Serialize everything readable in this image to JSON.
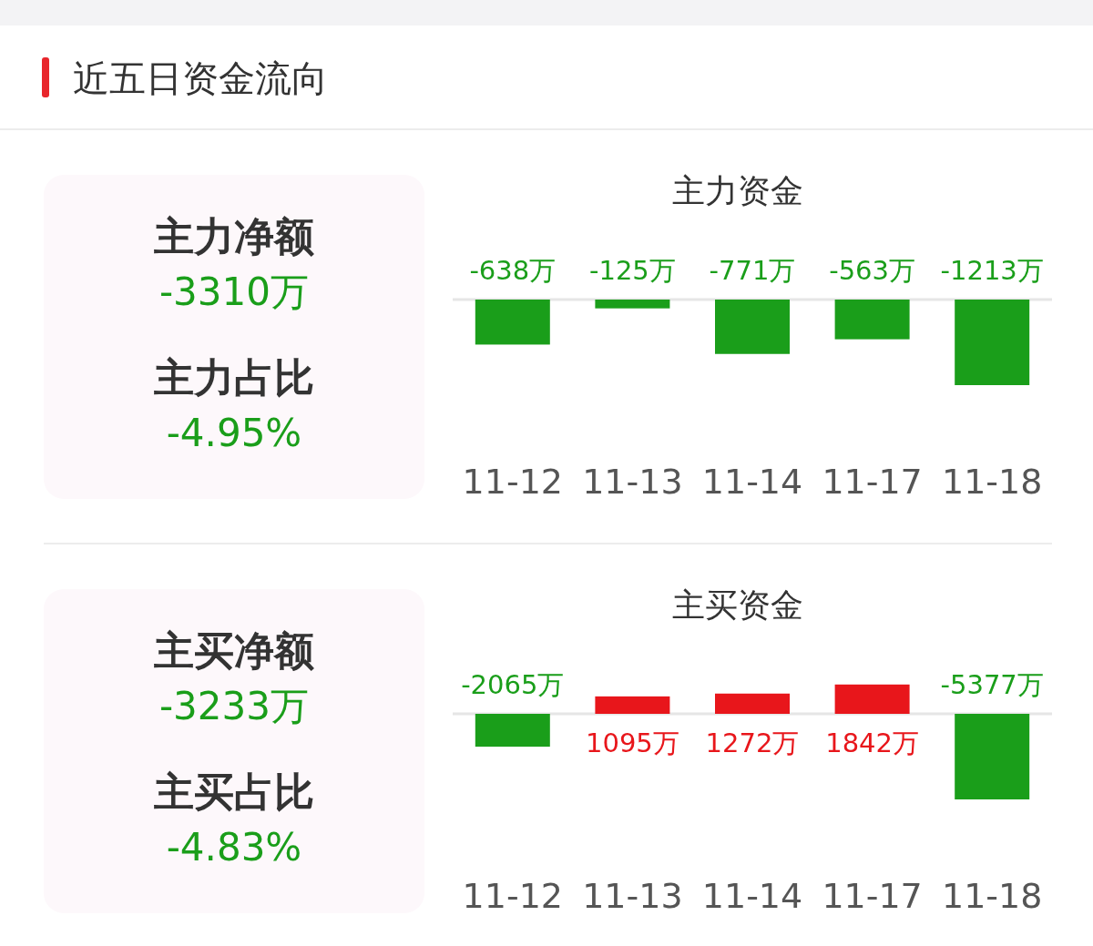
{
  "chart_data": [
    {
      "type": "other",
      "title": "近五日资金流向"
    },
    {
      "type": "other",
      "annotations": [
        "主力净额",
        "-3310万",
        "主力占比",
        "-4.95%"
      ]
    },
    {
      "type": "bar",
      "title": "主力资金",
      "categories": [
        "11-12",
        "11-13",
        "11-14",
        "11-17",
        "11-18"
      ],
      "values": [
        -638,
        -125,
        -771,
        -563,
        -1213
      ],
      "colors": [
        "#1a9e1a",
        "#1a9e1a",
        "#1a9e1a",
        "#1a9e1a",
        "#1a9e1a"
      ],
      "value_labels": [
        "-638万",
        "-125万",
        "-771万",
        "-563万",
        "-1213万"
      ]
    },
    {
      "type": "other",
      "annotations": [
        "主买净额",
        "-3233万",
        "主买占比",
        "-4.83%"
      ]
    },
    {
      "type": "bar",
      "title": "主买资金",
      "categories": [
        "11-12",
        "11-13",
        "11-14",
        "11-17",
        "11-18"
      ],
      "values": [
        -2065,
        1095,
        1272,
        1842,
        -5377
      ],
      "colors": [
        "#1a9e1a",
        "#e8161b",
        "#e8161b",
        "#e8161b",
        "#1a9e1a"
      ],
      "value_labels": [
        "-2065万",
        "1095万",
        "1272万",
        "1842万",
        "-5377万"
      ]
    }
  ]
}
